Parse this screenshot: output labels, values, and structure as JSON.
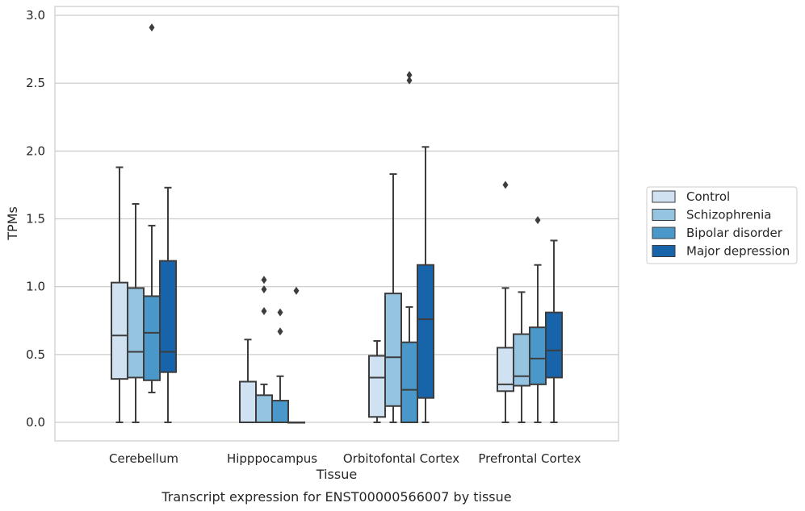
{
  "chart_data": {
    "type": "box",
    "xlabel": "Tissue",
    "ylabel": "TPMs",
    "caption": "Transcript expression for ENST00000566007 by tissue",
    "ylim": [
      -0.14,
      3.06
    ],
    "yticks": [
      "0.0",
      "0.5",
      "1.0",
      "1.5",
      "2.0",
      "2.5",
      "3.0"
    ],
    "ytick_values": [
      0.0,
      0.5,
      1.0,
      1.5,
      2.0,
      2.5,
      3.0
    ],
    "grid": "horizontal",
    "legend_position": "right",
    "categories": [
      "Cerebellum",
      "Hipppocampus",
      "Orbitofontal Cortex",
      "Prefrontal Cortex"
    ],
    "series": [
      {
        "name": "Control",
        "color": "#d0e1f2",
        "boxes": [
          {
            "whislo": 0.0,
            "q1": 0.32,
            "med": 0.64,
            "q3": 1.03,
            "whishi": 1.88,
            "fliers": []
          },
          {
            "whislo": 0.0,
            "q1": 0.0,
            "med": 0.0,
            "q3": 0.3,
            "whishi": 0.61,
            "fliers": []
          },
          {
            "whislo": 0.0,
            "q1": 0.04,
            "med": 0.33,
            "q3": 0.49,
            "whishi": 0.6,
            "fliers": []
          },
          {
            "whislo": 0.0,
            "q1": 0.23,
            "med": 0.28,
            "q3": 0.55,
            "whishi": 0.99,
            "fliers": [
              1.75
            ]
          }
        ]
      },
      {
        "name": "Schizophrenia",
        "color": "#94c4df",
        "boxes": [
          {
            "whislo": 0.0,
            "q1": 0.33,
            "med": 0.52,
            "q3": 0.99,
            "whishi": 1.61,
            "fliers": []
          },
          {
            "whislo": 0.0,
            "q1": 0.0,
            "med": 0.0,
            "q3": 0.2,
            "whishi": 0.28,
            "fliers": [
              0.82,
              0.98,
              1.05
            ]
          },
          {
            "whislo": 0.0,
            "q1": 0.12,
            "med": 0.48,
            "q3": 0.95,
            "whishi": 1.83,
            "fliers": []
          },
          {
            "whislo": 0.0,
            "q1": 0.27,
            "med": 0.34,
            "q3": 0.65,
            "whishi": 0.96,
            "fliers": []
          }
        ]
      },
      {
        "name": "Bipolar disorder",
        "color": "#4a98c9",
        "boxes": [
          {
            "whislo": 0.22,
            "q1": 0.31,
            "med": 0.66,
            "q3": 0.93,
            "whishi": 1.45,
            "fliers": [
              2.91
            ]
          },
          {
            "whislo": 0.0,
            "q1": 0.0,
            "med": 0.0,
            "q3": 0.16,
            "whishi": 0.34,
            "fliers": [
              0.67,
              0.81
            ]
          },
          {
            "whislo": 0.0,
            "q1": 0.0,
            "med": 0.24,
            "q3": 0.59,
            "whishi": 0.85,
            "fliers": [
              2.52,
              2.56
            ]
          },
          {
            "whislo": 0.0,
            "q1": 0.28,
            "med": 0.47,
            "q3": 0.7,
            "whishi": 1.16,
            "fliers": [
              1.49
            ]
          }
        ]
      },
      {
        "name": "Major depression",
        "color": "#1764ab",
        "boxes": [
          {
            "whislo": 0.0,
            "q1": 0.37,
            "med": 0.52,
            "q3": 1.19,
            "whishi": 1.73,
            "fliers": []
          },
          {
            "whislo": 0.0,
            "q1": 0.0,
            "med": 0.0,
            "q3": 0.0,
            "whishi": 0.0,
            "fliers": [
              0.97
            ]
          },
          {
            "whislo": 0.0,
            "q1": 0.18,
            "med": 0.76,
            "q3": 1.16,
            "whishi": 2.03,
            "fliers": []
          },
          {
            "whislo": 0.0,
            "q1": 0.33,
            "med": 0.53,
            "q3": 0.81,
            "whishi": 1.34,
            "fliers": []
          }
        ]
      }
    ]
  }
}
